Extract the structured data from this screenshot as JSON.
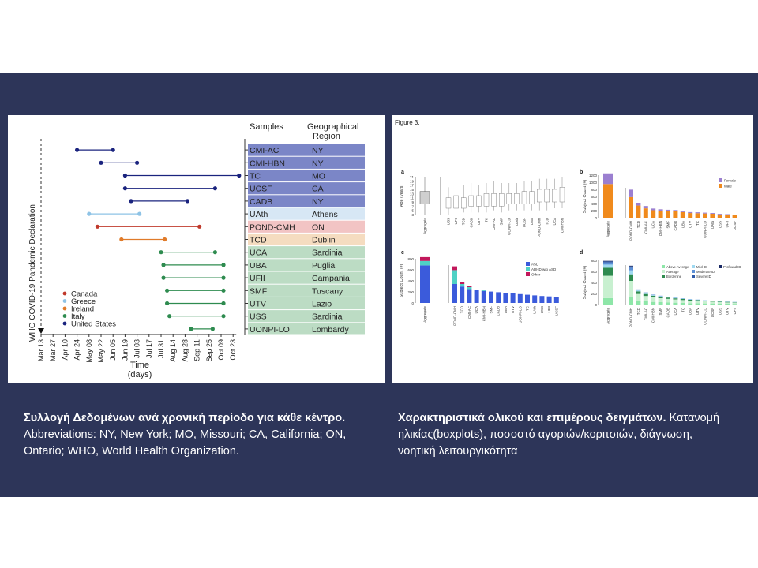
{
  "left_caption": {
    "bold": "Συλλογή Δεδομένων  ανά χρονική περίοδο για κάθε κέντρο.",
    "line2": "Abbreviations: NY, New York; MO, Missouri; CA, California; ON,",
    "line3": "Ontario; WHO, World Health Organization."
  },
  "right_caption": {
    "bold": "Χαρακτηριστικά ολικού και επιμέρους δειγμάτων.",
    "rest1": " Κατανομή",
    "line2": "ηλικίας(boxplots), ποσοστό αγοριών/κοριτσιών, διάγνωση,",
    "line3": "νοητική λειτουργικότητα"
  },
  "timeline": {
    "header_samples": "Samples",
    "header_region1": "Geographical",
    "header_region2": "Region",
    "vertical_label": "WHO COVID-19 Pandemic Declaration",
    "xlabel1": "Time",
    "xlabel2": "(days)",
    "x_ticks": [
      "Mar 13",
      "Mar 27",
      "Apr 10",
      "Apr 24",
      "May 08",
      "May 22",
      "Jun 05",
      "Jun 19",
      "Jul 03",
      "Jul 17",
      "Jul 31",
      "Aug 14",
      "Aug 28",
      "Sep 11",
      "Sep 25",
      "Oct 09",
      "Oct 23"
    ],
    "legend": [
      {
        "name": "Canada",
        "color": "#c0392b"
      },
      {
        "name": "Greece",
        "color": "#8ec3e6"
      },
      {
        "name": "Ireland",
        "color": "#e07b2a"
      },
      {
        "name": "Italy",
        "color": "#2e8b4f"
      },
      {
        "name": "United States",
        "color": "#1a237e"
      }
    ],
    "rows": [
      {
        "sample": "CMI-AC",
        "region": "NY",
        "country": "United States",
        "start": 3,
        "end": 6,
        "bg": "#7b86c7"
      },
      {
        "sample": "CMI-HBN",
        "region": "NY",
        "country": "United States",
        "start": 5,
        "end": 8,
        "bg": "#7b86c7"
      },
      {
        "sample": "TC",
        "region": "MO",
        "country": "United States",
        "start": 7,
        "end": 16.5,
        "bg": "#7b86c7"
      },
      {
        "sample": "UCSF",
        "region": "CA",
        "country": "United States",
        "start": 7,
        "end": 14.5,
        "bg": "#7b86c7"
      },
      {
        "sample": "CADB",
        "region": "NY",
        "country": "United States",
        "start": 7.5,
        "end": 12.2,
        "bg": "#7b86c7"
      },
      {
        "sample": "UAth",
        "region": "Athens",
        "country": "Greece",
        "start": 4,
        "end": 8.2,
        "bg": "#d7e7f5"
      },
      {
        "sample": "POND-CMH",
        "region": "ON",
        "country": "Canada",
        "start": 4.7,
        "end": 13.2,
        "bg": "#f2c4c4"
      },
      {
        "sample": "TCD",
        "region": "Dublin",
        "country": "Ireland",
        "start": 6.7,
        "end": 10.3,
        "bg": "#f5dcc0"
      },
      {
        "sample": "UCA",
        "region": "Sardinia",
        "country": "Italy",
        "start": 10,
        "end": 14.5,
        "bg": "#bcdcc4"
      },
      {
        "sample": "UBA",
        "region": "Puglia",
        "country": "Italy",
        "start": 10.2,
        "end": 15.2,
        "bg": "#bcdcc4"
      },
      {
        "sample": "UFII",
        "region": "Campania",
        "country": "Italy",
        "start": 10.2,
        "end": 15.2,
        "bg": "#bcdcc4"
      },
      {
        "sample": "SMF",
        "region": "Tuscany",
        "country": "Italy",
        "start": 10.5,
        "end": 15.2,
        "bg": "#bcdcc4"
      },
      {
        "sample": "UTV",
        "region": "Lazio",
        "country": "Italy",
        "start": 10.5,
        "end": 15.2,
        "bg": "#bcdcc4"
      },
      {
        "sample": "USS",
        "region": "Sardinia",
        "country": "Italy",
        "start": 10.7,
        "end": 15.2,
        "bg": "#bcdcc4"
      },
      {
        "sample": "UONPI-LO",
        "region": "Lombardy",
        "country": "Italy",
        "start": 12.5,
        "end": 14.3,
        "bg": "#bcdcc4"
      }
    ]
  },
  "figure3": {
    "title": "Figure 3.",
    "panel_a": {
      "letter": "a",
      "ylabel": "Age (years)",
      "y_ticks": [
        "21",
        "19",
        "17",
        "15",
        "13",
        "11",
        "9",
        "7",
        "5",
        "3"
      ],
      "aggregate_label": "Aggregate",
      "sites": [
        "USS",
        "UFII",
        "TCD",
        "CADB",
        "UTV",
        "TC",
        "CMI-AC",
        "SMF",
        "UONPI-LO",
        "UAth",
        "UCSF",
        "UBA",
        "POND-CMH",
        "TCD",
        "UCA",
        "CMI-HBN"
      ],
      "boxes": [
        {
          "q1": 6,
          "q3": 11,
          "lo": 3,
          "hi": 16
        },
        {
          "q1": 6,
          "q3": 12,
          "lo": 3,
          "hi": 18
        },
        {
          "q1": 6,
          "q3": 11,
          "lo": 4,
          "hi": 17
        },
        {
          "q1": 7,
          "q3": 12,
          "lo": 4,
          "hi": 18
        },
        {
          "q1": 7,
          "q3": 12,
          "lo": 4,
          "hi": 17
        },
        {
          "q1": 7,
          "q3": 13,
          "lo": 4,
          "hi": 18
        },
        {
          "q1": 7,
          "q3": 13,
          "lo": 5,
          "hi": 19
        },
        {
          "q1": 7,
          "q3": 13,
          "lo": 4,
          "hi": 18
        },
        {
          "q1": 8,
          "q3": 13,
          "lo": 5,
          "hi": 18
        },
        {
          "q1": 8,
          "q3": 13,
          "lo": 5,
          "hi": 18
        },
        {
          "q1": 8,
          "q3": 14,
          "lo": 5,
          "hi": 19
        },
        {
          "q1": 8,
          "q3": 14,
          "lo": 5,
          "hi": 19
        },
        {
          "q1": 9,
          "q3": 15,
          "lo": 5,
          "hi": 20
        },
        {
          "q1": 9,
          "q3": 15,
          "lo": 5,
          "hi": 20
        },
        {
          "q1": 9,
          "q3": 15,
          "lo": 6,
          "hi": 20
        },
        {
          "q1": 9,
          "q3": 16,
          "lo": 6,
          "hi": 21
        }
      ],
      "aggregate_box": {
        "q1": 8,
        "q3": 14,
        "lo": 3,
        "hi": 21
      }
    },
    "panel_b": {
      "letter": "b",
      "ylabel": "Subject Count (#)",
      "y_ticks": [
        "1200",
        "1000",
        "800",
        "600",
        "400",
        "200",
        "0"
      ],
      "legend": [
        {
          "name": "Female",
          "color": "#9b7fd0"
        },
        {
          "name": "Male",
          "color": "#f08a1c"
        }
      ],
      "aggregate_label": "Aggregate",
      "aggregate": {
        "male": 950,
        "female": 300
      },
      "sites": [
        "POND-CMH",
        "TCD",
        "CMI-AC",
        "UCA",
        "CMI-HBN",
        "SMF",
        "CADB",
        "UBA",
        "UTV",
        "TC",
        "UONPI-LO",
        "UAth",
        "USS",
        "UFII",
        "UCSF"
      ],
      "male": [
        220,
        130,
        100,
        80,
        75,
        70,
        68,
        60,
        50,
        48,
        45,
        42,
        35,
        32,
        28
      ],
      "female": [
        80,
        30,
        25,
        18,
        15,
        15,
        14,
        12,
        10,
        10,
        9,
        8,
        7,
        6,
        5
      ]
    },
    "panel_c": {
      "letter": "c",
      "ylabel": "Subject Count (#)",
      "y_ticks": [
        "800",
        "600",
        "400",
        "200",
        "0"
      ],
      "legend": [
        {
          "name": "ASD",
          "color": "#3b5bdb"
        },
        {
          "name": "ADHD w/o ASD",
          "color": "#4fd1c5"
        },
        {
          "name": "Other",
          "color": "#c2185b"
        }
      ],
      "aggregate_label": "Aggregate",
      "aggregate": {
        "asd": 680,
        "adhd": 80,
        "other": 70
      },
      "sites": [
        "POND-CMH",
        "TCD",
        "CMI-AC",
        "UCA",
        "CMI-HBN",
        "SMF",
        "CADB",
        "UBA",
        "UTV",
        "UONPI-LO",
        "TC",
        "UAth",
        "USS",
        "UFII",
        "UCSF"
      ],
      "asd": [
        150,
        130,
        110,
        100,
        95,
        90,
        85,
        80,
        75,
        70,
        65,
        60,
        55,
        52,
        48
      ],
      "adhd": [
        110,
        20,
        15,
        0,
        5,
        0,
        0,
        0,
        0,
        0,
        0,
        0,
        0,
        0,
        0
      ],
      "other": [
        30,
        15,
        10,
        0,
        5,
        0,
        0,
        0,
        0,
        0,
        0,
        0,
        0,
        0,
        0
      ]
    },
    "panel_d": {
      "letter": "d",
      "ylabel": "Subject Count (#)",
      "y_ticks": [
        "800",
        "600",
        "400",
        "200",
        "0"
      ],
      "legend": [
        {
          "name": "Above Average",
          "color": "#8ee6a8"
        },
        {
          "name": "Average",
          "color": "#c8f0d0"
        },
        {
          "name": "Borderline",
          "color": "#2e8b4f"
        },
        {
          "name": "Mild ID",
          "color": "#9fd8f0"
        },
        {
          "name": "Moderate ID",
          "color": "#5b8fd6"
        },
        {
          "name": "Severe ID",
          "color": "#2e5aa8"
        },
        {
          "name": "Profound ID",
          "color": "#1a2a66"
        }
      ],
      "aggregate_label": "Aggregate",
      "aggregate": [
        120,
        420,
        150,
        60,
        40,
        20,
        10
      ],
      "sites": [
        "POND-CMH",
        "TCD",
        "CMI-AC",
        "CMI-HBN",
        "SMF",
        "CADB",
        "UCA",
        "TC",
        "UBA",
        "UTV",
        "UONPI-LO",
        "UCSF",
        "USS",
        "UTV",
        "UFII"
      ],
      "stacks": [
        [
          60,
          120,
          50,
          30,
          20,
          10,
          5
        ],
        [
          30,
          50,
          20,
          10,
          5,
          0,
          0
        ],
        [
          25,
          40,
          15,
          8,
          4,
          0,
          0
        ],
        [
          20,
          35,
          12,
          6,
          3,
          0,
          0
        ],
        [
          18,
          30,
          10,
          6,
          3,
          0,
          0
        ],
        [
          15,
          28,
          10,
          5,
          2,
          0,
          0
        ],
        [
          14,
          25,
          8,
          4,
          2,
          0,
          0
        ],
        [
          12,
          22,
          8,
          4,
          2,
          0,
          0
        ],
        [
          10,
          20,
          6,
          3,
          2,
          0,
          0
        ],
        [
          10,
          18,
          6,
          3,
          1,
          0,
          0
        ],
        [
          8,
          16,
          5,
          3,
          1,
          0,
          0
        ],
        [
          8,
          14,
          5,
          2,
          1,
          0,
          0
        ],
        [
          6,
          12,
          4,
          2,
          1,
          0,
          0
        ],
        [
          6,
          10,
          4,
          2,
          1,
          0,
          0
        ],
        [
          5,
          9,
          3,
          2,
          1,
          0,
          0
        ]
      ]
    }
  },
  "chart_data": [
    {
      "type": "scatter",
      "title": "",
      "xlabel": "Time (days)",
      "categories": [
        "CMI-AC",
        "CMI-HBN",
        "TC",
        "UCSF",
        "CADB",
        "UAth",
        "POND-CMH",
        "TCD",
        "UCA",
        "UBA",
        "UFII",
        "SMF",
        "UTV",
        "USS",
        "UONPI-LO"
      ],
      "x_ticks": [
        "Mar 13",
        "Mar 27",
        "Apr 10",
        "Apr 24",
        "May 08",
        "May 22",
        "Jun 05",
        "Jun 19",
        "Jul 03",
        "Jul 17",
        "Jul 31",
        "Aug 14",
        "Aug 28",
        "Sep 11",
        "Sep 25",
        "Oct 09",
        "Oct 23"
      ]
    },
    {
      "type": "bar",
      "title": "Figure 3."
    }
  ]
}
